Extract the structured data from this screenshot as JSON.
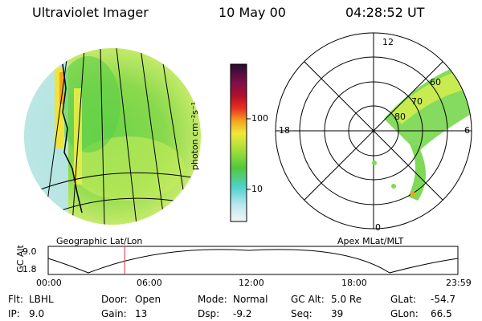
{
  "header": {
    "title": "Ultraviolet Imager",
    "date": "10 May 00",
    "time": "04:28:52 UT"
  },
  "colorbar": {
    "unit_label": "photon cm⁻²s⁻¹",
    "ticks": [
      "100",
      "10"
    ]
  },
  "polar": {
    "hour_labels": {
      "top": "12",
      "left": "18",
      "right": "6",
      "bottom": "0"
    },
    "lat_labels": [
      "60",
      "70",
      "80"
    ]
  },
  "captions": {
    "left": "Geographic Lat/Lon",
    "right": "Apex  MLat/MLT"
  },
  "timeline": {
    "ylabel": "GC Alt",
    "y_ticks": [
      "9.0",
      "1.8"
    ],
    "x_ticks": [
      "00:00",
      "06:00",
      "12:00",
      "18:00",
      "23:59"
    ],
    "marker_time": "04:28:52"
  },
  "info": {
    "flt": {
      "label": "Flt:",
      "value": "LBHL"
    },
    "ip": {
      "label": "IP:",
      "value": "9.0"
    },
    "door": {
      "label": "Door:",
      "value": "Open"
    },
    "gain": {
      "label": "Gain:",
      "value": "13"
    },
    "mode": {
      "label": "Mode:",
      "value": "Normal"
    },
    "dsp": {
      "label": "Dsp:",
      "value": "-9.2"
    },
    "gcalt": {
      "label": "GC Alt:",
      "value": "5.0 Re"
    },
    "seq": {
      "label": "Seq:",
      "value": "39"
    },
    "glat": {
      "label": "GLat:",
      "value": "-54.7"
    },
    "glon": {
      "label": "GLon:",
      "value": "66.5"
    }
  },
  "colors": {
    "marker": "#e0303a",
    "low": "#b8e7f2",
    "mid": "#7ed957",
    "high": "#f2e43a"
  }
}
